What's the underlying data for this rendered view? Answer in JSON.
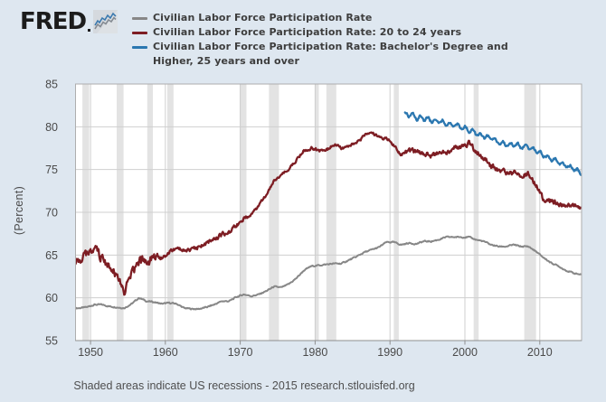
{
  "logo": {
    "text": "FRED",
    "icon": "line-chart-icon"
  },
  "footer": {
    "note": "Shaded areas indicate US recessions - 2015 research.stlouisfed.org"
  },
  "colors": {
    "page_bg": "#dee7f0",
    "plot_bg": "#ffffff",
    "grid": "#cfcfcf",
    "border": "#aeaeae",
    "axis": "#8f8f8f",
    "recession_band": "#e3e3e3",
    "tick_text": "#4a4a4a",
    "legend_text": "#3d3d3d",
    "footer_text": "#4f4f4f",
    "series_gray": "#878787",
    "series_red": "#7d1d23",
    "series_blue": "#2b77b0"
  },
  "chart_data": {
    "type": "line",
    "ylabel": "(Percent)",
    "xlim": [
      1948,
      2015.58
    ],
    "ylim": [
      55,
      85
    ],
    "x_ticks": [
      1950,
      1960,
      1970,
      1980,
      1990,
      2000,
      2010
    ],
    "y_ticks": [
      55,
      60,
      65,
      70,
      75,
      80,
      85
    ],
    "grid": true,
    "legend_position": "top",
    "recessions_shaded": [
      [
        1948.92,
        1949.83
      ],
      [
        1953.5,
        1954.42
      ],
      [
        1957.58,
        1958.33
      ],
      [
        1960.25,
        1961.08
      ],
      [
        1969.92,
        1970.83
      ],
      [
        1973.83,
        1975.17
      ],
      [
        1980.0,
        1980.5
      ],
      [
        1981.5,
        1982.83
      ],
      [
        1990.5,
        1991.17
      ],
      [
        2001.17,
        2001.83
      ],
      [
        2007.92,
        2009.5
      ]
    ],
    "series": [
      {
        "name": "Civilian Labor Force Participation Rate",
        "legend_label": "Civilian Labor Force Participation Rate",
        "color": "#878787",
        "start_year": 1948,
        "frequency": "annual_average_of_monthly",
        "values": [
          58.8,
          58.9,
          59.2,
          59.2,
          59.0,
          58.9,
          58.8,
          59.3,
          60.0,
          59.6,
          59.5,
          59.3,
          59.4,
          59.3,
          58.8,
          58.7,
          58.7,
          58.9,
          59.2,
          59.6,
          59.6,
          60.1,
          60.4,
          60.2,
          60.4,
          60.8,
          61.3,
          61.2,
          61.6,
          62.3,
          63.2,
          63.7,
          63.8,
          63.9,
          64.0,
          64.0,
          64.4,
          64.8,
          65.3,
          65.6,
          65.9,
          66.5,
          66.5,
          66.2,
          66.4,
          66.3,
          66.6,
          66.6,
          66.8,
          67.1,
          67.1,
          67.1,
          67.1,
          66.8,
          66.6,
          66.2,
          66.0,
          66.0,
          66.2,
          66.0,
          66.0,
          65.4,
          64.7,
          64.1,
          63.7,
          63.2,
          62.9,
          62.7
        ]
      },
      {
        "name": "Civilian Labor Force Participation Rate: 20 to 24 years",
        "legend_label": "Civilian Labor Force Participation Rate: 20 to 24 years",
        "color": "#7d1d23",
        "start_year": 1948,
        "frequency": "annual_average_of_monthly",
        "values": [
          64.3,
          65.0,
          65.8,
          64.8,
          63.8,
          62.4,
          60.6,
          62.6,
          64.2,
          64.5,
          64.4,
          64.6,
          65.4,
          65.8,
          65.4,
          65.6,
          66.0,
          66.4,
          66.8,
          67.4,
          67.6,
          68.5,
          69.3,
          69.8,
          70.8,
          72.0,
          73.6,
          74.4,
          75.1,
          76.1,
          77.2,
          77.5,
          77.2,
          77.3,
          77.9,
          77.5,
          77.6,
          78.2,
          78.9,
          79.4,
          78.9,
          78.6,
          77.8,
          76.7,
          77.1,
          77.1,
          77.0,
          76.6,
          76.8,
          77.0,
          77.5,
          77.7,
          78.1,
          77.1,
          76.4,
          75.4,
          75.0,
          74.6,
          74.6,
          74.4,
          74.4,
          73.2,
          71.4,
          71.3,
          70.9,
          70.7,
          70.8,
          70.2
        ]
      },
      {
        "name": "Civilian Labor Force Participation Rate: Bachelor's Degree and Higher, 25 years and over",
        "legend_label": "Civilian Labor Force Participation Rate: Bachelor's Degree and\nHigher, 25 years and over",
        "color": "#2b77b0",
        "start_year": 1992,
        "frequency": "annual_average_of_monthly",
        "values": [
          81.5,
          81.1,
          80.9,
          80.8,
          80.6,
          80.4,
          80.2,
          79.9,
          79.7,
          79.3,
          78.9,
          78.6,
          78.2,
          78.0,
          77.9,
          77.7,
          77.6,
          77.3,
          76.7,
          76.2,
          75.9,
          75.4,
          75.1,
          74.6
        ]
      }
    ]
  }
}
